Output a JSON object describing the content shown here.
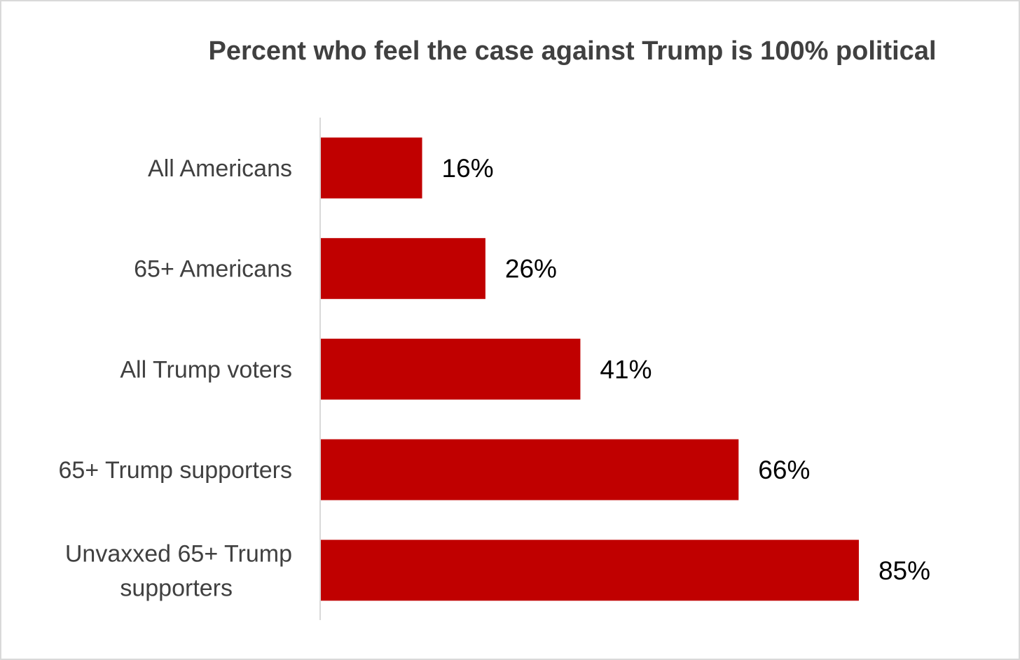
{
  "chart_data": {
    "type": "bar",
    "orientation": "horizontal",
    "title": "Percent who feel the case against Trump is 100% political",
    "categories": [
      "All Americans",
      "65+ Americans",
      "All Trump voters",
      "65+ Trump supporters",
      "Unvaxxed 65+ Trump supporters"
    ],
    "category_lines": [
      [
        "All Americans"
      ],
      [
        "65+ Americans"
      ],
      [
        "All Trump voters"
      ],
      [
        "65+ Trump supporters"
      ],
      [
        "Unvaxxed 65+ Trump",
        "supporters"
      ]
    ],
    "values": [
      16,
      26,
      41,
      66,
      85
    ],
    "data_labels": [
      "16%",
      "26%",
      "41%",
      "66%",
      "85%"
    ],
    "xlim": [
      0,
      100
    ],
    "grid": false,
    "legend": "none",
    "bar_color": "#c00000"
  }
}
